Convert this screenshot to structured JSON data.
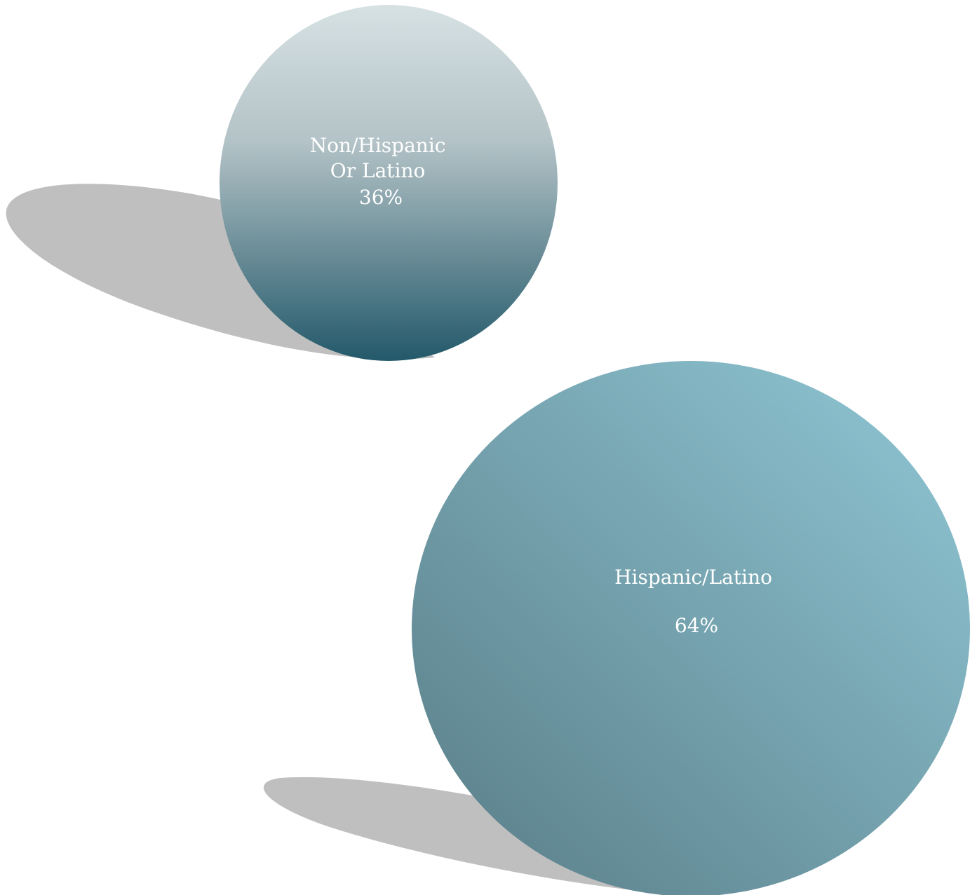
{
  "chart_data": {
    "type": "bubble",
    "title": "",
    "categories": [
      "Non/Hispanic Or Latino",
      "Hispanic/Latino"
    ],
    "values": [
      36,
      64
    ],
    "unit": "%",
    "labels": [
      {
        "name_lines": [
          "Non/Hispanic",
          "Or Latino"
        ],
        "value_text": "36%"
      },
      {
        "name_lines": [
          "Hispanic/Latino"
        ],
        "value_text": "64%"
      }
    ],
    "colors": {
      "small_gradient_top": "#d6e1e3",
      "small_gradient_bottom": "#23596a",
      "large_gradient_light": "#91c8d6",
      "large_gradient_dark": "#587c86",
      "shadow": "#bfbfbf",
      "label_text": "#ffffff"
    }
  }
}
